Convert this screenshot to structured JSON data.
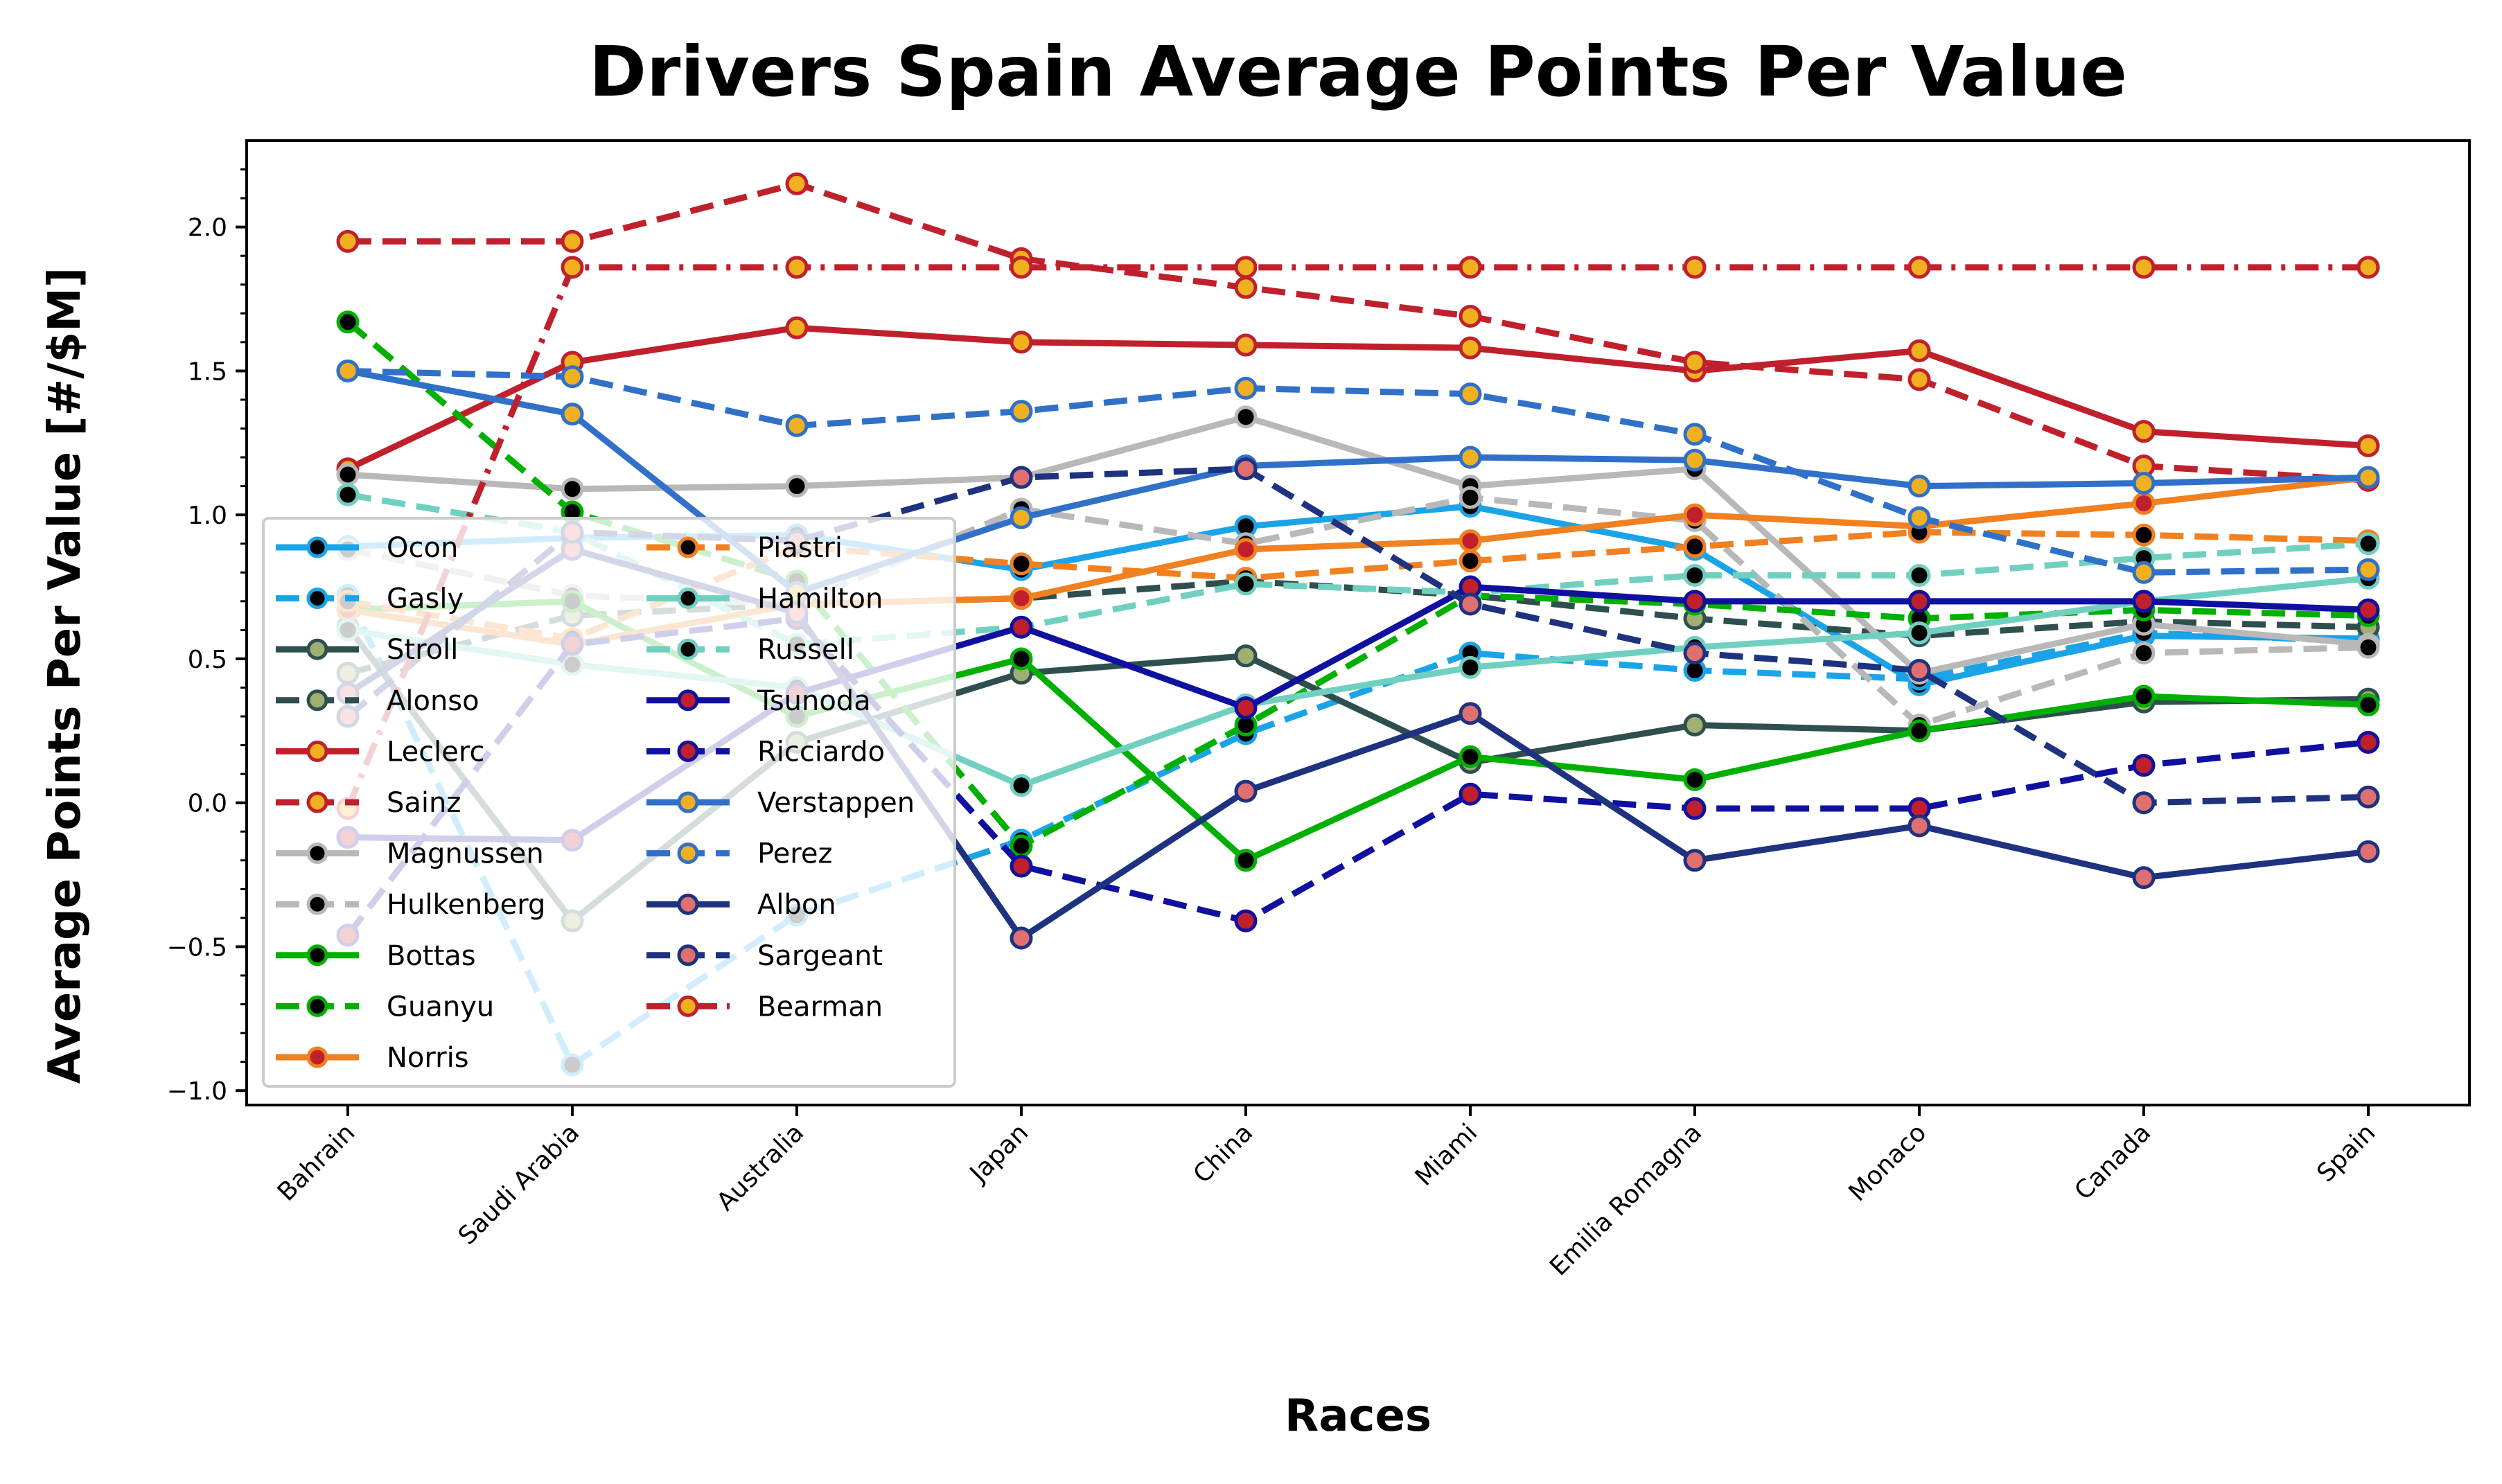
{
  "chart_data": {
    "type": "line",
    "title": "Drivers Spain Average Points Per Value",
    "xlabel": "Races",
    "ylabel": "Average Points Per Value [#/$M]",
    "categories": [
      "Bahrain",
      "Saudi Arabia",
      "Australia",
      "Japan",
      "China",
      "Miami",
      "Emilia Romagna",
      "Monaco",
      "Canada",
      "Spain"
    ],
    "ylim": [
      -1.05,
      2.3
    ],
    "yticks": [
      -1.0,
      -0.5,
      0.0,
      0.5,
      1.0,
      1.5,
      2.0
    ],
    "ytick_labels": [
      "−1.0",
      "−0.5",
      "0.0",
      "0.5",
      "1.0",
      "1.5",
      "2.0"
    ],
    "grid": false,
    "legend_position": "lower-left",
    "series": [
      {
        "name": "Ocon",
        "color": "#1ba3e8",
        "marker_fill": "#000000",
        "dash": "solid",
        "values": [
          0.89,
          0.92,
          0.93,
          0.81,
          0.96,
          1.03,
          0.88,
          0.41,
          0.58,
          0.57
        ]
      },
      {
        "name": "Gasly",
        "color": "#1ba3e8",
        "marker_fill": "#000000",
        "dash": "dashed",
        "values": [
          0.72,
          -0.91,
          -0.39,
          -0.13,
          0.24,
          0.52,
          0.46,
          0.43,
          0.59,
          0.56
        ]
      },
      {
        "name": "Stroll",
        "color": "#2f4f4f",
        "marker_fill": "#a0b070",
        "dash": "solid",
        "values": [
          0.61,
          -0.41,
          0.21,
          0.45,
          0.51,
          0.14,
          0.27,
          0.25,
          0.35,
          0.36
        ]
      },
      {
        "name": "Alonso",
        "color": "#2f4f4f",
        "marker_fill": "#a0b070",
        "dash": "dashed",
        "values": [
          0.45,
          0.65,
          0.69,
          0.71,
          0.77,
          0.72,
          0.64,
          0.58,
          0.63,
          0.61
        ]
      },
      {
        "name": "Leclerc",
        "color": "#c0202c",
        "marker_fill": "#f0b020",
        "dash": "solid",
        "values": [
          1.16,
          1.53,
          1.65,
          1.6,
          1.59,
          1.58,
          1.5,
          1.57,
          1.29,
          1.24
        ]
      },
      {
        "name": "Sainz",
        "color": "#c0202c",
        "marker_fill": "#f0b020",
        "dash": "dashed",
        "values": [
          1.95,
          1.95,
          2.15,
          1.89,
          1.79,
          1.69,
          1.53,
          1.47,
          1.17,
          1.12
        ]
      },
      {
        "name": "Magnussen",
        "color": "#b8b8b8",
        "marker_fill": "#000000",
        "dash": "solid",
        "values": [
          1.14,
          1.09,
          1.1,
          1.13,
          1.34,
          1.1,
          1.16,
          0.45,
          0.62,
          0.55
        ]
      },
      {
        "name": "Hulkenberg",
        "color": "#b8b8b8",
        "marker_fill": "#000000",
        "dash": "dashed",
        "values": [
          0.88,
          0.72,
          0.69,
          1.02,
          0.9,
          1.06,
          0.98,
          0.27,
          0.52,
          0.54
        ]
      },
      {
        "name": "Bottas",
        "color": "#00b000",
        "marker_fill": "#000000",
        "dash": "solid",
        "values": [
          0.67,
          0.7,
          0.3,
          0.5,
          -0.2,
          0.16,
          0.08,
          0.25,
          0.37,
          0.34
        ]
      },
      {
        "name": "Guanyu",
        "color": "#00b000",
        "marker_fill": "#000000",
        "dash": "dashed",
        "values": [
          1.67,
          1.01,
          0.77,
          -0.15,
          0.27,
          0.72,
          0.69,
          0.64,
          0.67,
          0.65
        ]
      },
      {
        "name": "Norris",
        "color": "#f08020",
        "marker_fill": "#c0202c",
        "dash": "solid",
        "values": [
          0.67,
          0.55,
          0.69,
          0.71,
          0.88,
          0.91,
          1.0,
          0.96,
          1.04,
          1.13
        ]
      },
      {
        "name": "Piastri",
        "color": "#f08020",
        "marker_fill": "#000000",
        "dash": "dashed",
        "values": [
          0.7,
          0.57,
          0.89,
          0.83,
          0.78,
          0.84,
          0.89,
          0.94,
          0.93,
          0.91
        ]
      },
      {
        "name": "Hamilton",
        "color": "#70d0c0",
        "marker_fill": "#000000",
        "dash": "solid",
        "values": [
          0.6,
          0.48,
          0.4,
          0.06,
          0.34,
          0.47,
          0.54,
          0.59,
          0.7,
          0.78
        ]
      },
      {
        "name": "Russell",
        "color": "#70d0c0",
        "marker_fill": "#000000",
        "dash": "dashed",
        "values": [
          1.07,
          0.94,
          0.55,
          0.61,
          0.76,
          0.73,
          0.79,
          0.79,
          0.85,
          0.9
        ]
      },
      {
        "name": "Tsunoda",
        "color": "#1010a0",
        "marker_fill": "#c0202c",
        "dash": "solid",
        "values": [
          -0.12,
          -0.13,
          0.38,
          0.61,
          0.33,
          0.75,
          0.7,
          0.7,
          0.7,
          0.67
        ]
      },
      {
        "name": "Ricciardo",
        "color": "#1010a0",
        "marker_fill": "#c0202c",
        "dash": "dashed",
        "values": [
          -0.46,
          0.55,
          0.64,
          -0.22,
          -0.41,
          0.03,
          -0.02,
          -0.02,
          0.13,
          0.21
        ]
      },
      {
        "name": "Verstappen",
        "color": "#3070c8",
        "marker_fill": "#f0b020",
        "dash": "solid",
        "values": [
          1.5,
          1.35,
          0.73,
          0.99,
          1.17,
          1.2,
          1.19,
          1.1,
          1.11,
          1.13
        ]
      },
      {
        "name": "Perez",
        "color": "#3070c8",
        "marker_fill": "#f0b020",
        "dash": "dashed",
        "values": [
          1.5,
          1.48,
          1.31,
          1.36,
          1.44,
          1.42,
          1.28,
          0.99,
          0.8,
          0.81
        ]
      },
      {
        "name": "Albon",
        "color": "#1e3280",
        "marker_fill": "#e07070",
        "dash": "solid",
        "values": [
          0.38,
          0.88,
          0.66,
          -0.47,
          0.04,
          0.31,
          -0.2,
          -0.08,
          -0.26,
          -0.17
        ]
      },
      {
        "name": "Sargeant",
        "color": "#1e3280",
        "marker_fill": "#e07070",
        "dash": "dashed",
        "values": [
          0.3,
          0.94,
          0.91,
          1.13,
          1.16,
          0.69,
          0.52,
          0.46,
          0.0,
          0.02
        ]
      },
      {
        "name": "Bearman",
        "color": "#c0202c",
        "marker_fill": "#f0b020",
        "dash": "dashdot",
        "values": [
          -0.02,
          1.86,
          1.86,
          1.86,
          1.86,
          1.86,
          1.86,
          1.86,
          1.86,
          1.86
        ]
      }
    ]
  }
}
